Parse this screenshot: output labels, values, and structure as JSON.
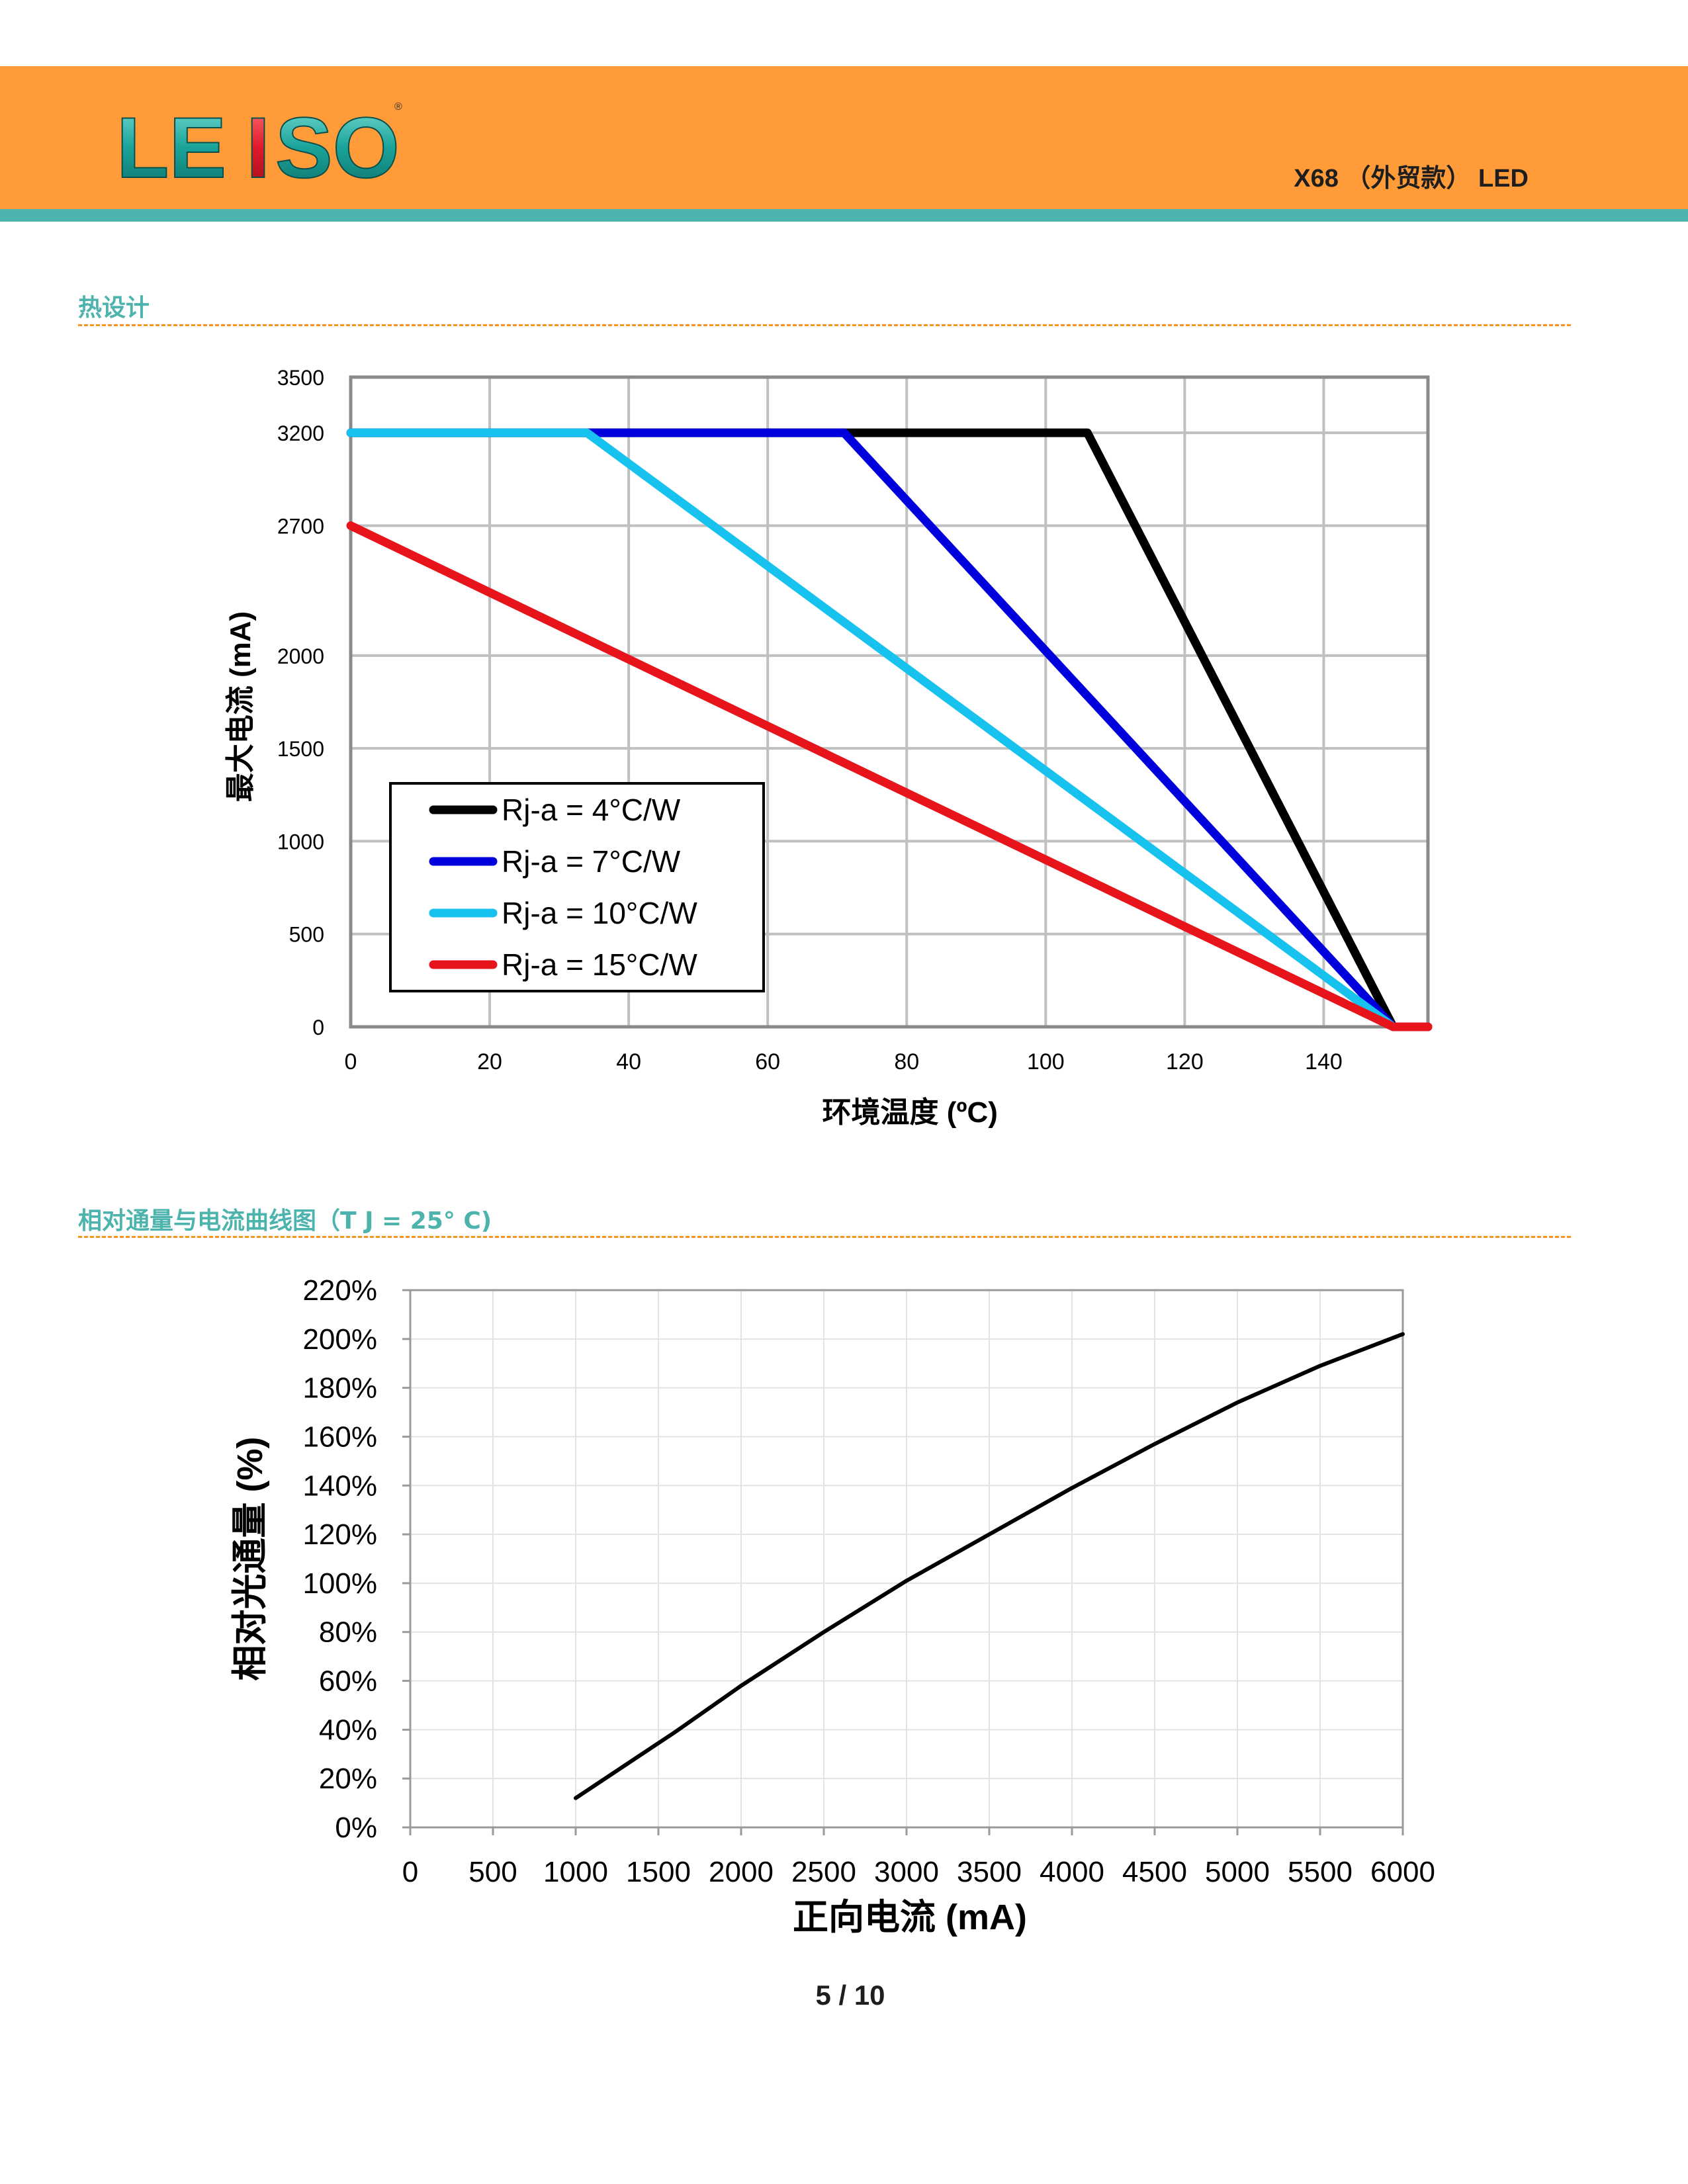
{
  "header": {
    "logo_text": "LEISO",
    "title": "X68 （外贸款） LED"
  },
  "sections": [
    {
      "title": "热设计"
    },
    {
      "title": "相对通量与电流曲线图（T J = 25° C)"
    }
  ],
  "chart_data": [
    {
      "type": "line",
      "title": "",
      "xlabel": "环境温度 (ºC)",
      "ylabel": "最大电流 (mA)",
      "xlim": [
        0,
        155
      ],
      "ylim": [
        0,
        3500
      ],
      "x_ticks": [
        0,
        20,
        40,
        60,
        80,
        100,
        120,
        140
      ],
      "y_ticks": [
        0,
        500,
        1000,
        1500,
        2000,
        2700,
        3200,
        3500
      ],
      "grid": true,
      "legend_position": "bottom-left",
      "series": [
        {
          "name": "Rj-a = 4°C/W",
          "color": "#000000",
          "x": [
            0,
            106,
            150,
            155
          ],
          "y": [
            3200,
            3200,
            0,
            0
          ]
        },
        {
          "name": "Rj-a = 7°C/W",
          "color": "#0000dd",
          "x": [
            0,
            71,
            150
          ],
          "y": [
            3200,
            3200,
            0
          ]
        },
        {
          "name": "Rj-a = 10°C/W",
          "color": "#17c2ef",
          "x": [
            0,
            34,
            150
          ],
          "y": [
            3200,
            3200,
            0
          ]
        },
        {
          "name": "Rj-a = 15°C/W",
          "color": "#e8141b",
          "x": [
            0,
            150,
            155
          ],
          "y": [
            2700,
            0,
            0
          ]
        }
      ]
    },
    {
      "type": "line",
      "title": "",
      "xlabel": "正向电流 (mA)",
      "ylabel": "相对光通量 (%)",
      "xlim": [
        0,
        6000
      ],
      "ylim": [
        0,
        220
      ],
      "x_ticks": [
        0,
        500,
        1000,
        1500,
        2000,
        2500,
        3000,
        3500,
        4000,
        4500,
        5000,
        5500,
        6000
      ],
      "y_ticks": [
        0,
        20,
        40,
        60,
        80,
        100,
        120,
        140,
        160,
        180,
        200,
        220
      ],
      "y_tick_suffix": "%",
      "grid": true,
      "series": [
        {
          "color": "#000000",
          "x": [
            1000,
            1200,
            1400,
            1600,
            2000,
            2500,
            3000,
            3500,
            4000,
            4500,
            5000,
            5500,
            6000
          ],
          "y": [
            12,
            21,
            30,
            39,
            58,
            80,
            101,
            120,
            139,
            157,
            174,
            189,
            202
          ]
        }
      ]
    }
  ],
  "footer": {
    "page": "5 / 10"
  }
}
